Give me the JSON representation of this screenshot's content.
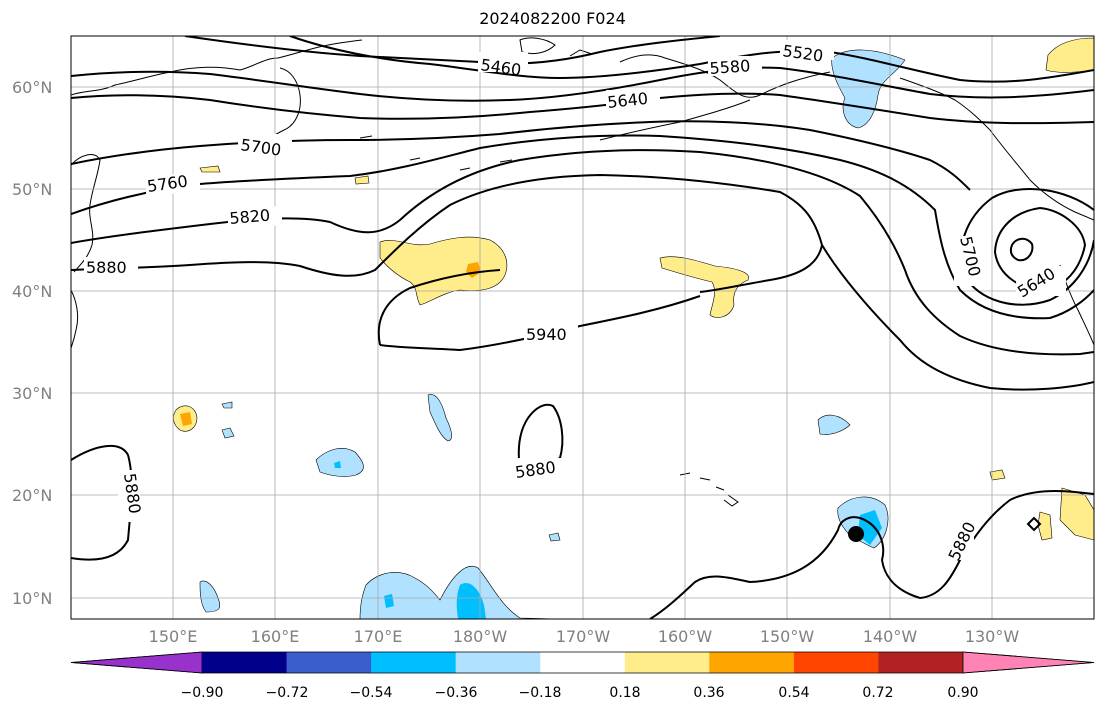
{
  "title": "2024082200 F024",
  "lat_labels": [
    "60°N",
    "50°N",
    "40°N",
    "30°N",
    "20°N",
    "10°N"
  ],
  "lon_labels": [
    "150°E",
    "160°E",
    "170°E",
    "180°W",
    "170°W",
    "160°W",
    "150°W",
    "140°W",
    "130°W"
  ],
  "contour_labels": [
    "5460",
    "5520",
    "5580",
    "5640",
    "5700",
    "5760",
    "5820",
    "5880",
    "5940",
    "5880",
    "5880",
    "5880",
    "5700",
    "5640"
  ],
  "colorbar": {
    "ticks": [
      "−0.90",
      "−0.72",
      "−0.54",
      "−0.36",
      "−0.18",
      "0.18",
      "0.36",
      "0.54",
      "0.72",
      "0.90"
    ],
    "colors": [
      "#9932cc",
      "#00008b",
      "#3a5fcd",
      "#00bfff",
      "#b0e2ff",
      "#ffffff",
      "#ffec8b",
      "#ffa500",
      "#ff4500",
      "#b22222",
      "#ff83b4"
    ]
  },
  "marker": "storm-position-dot"
}
